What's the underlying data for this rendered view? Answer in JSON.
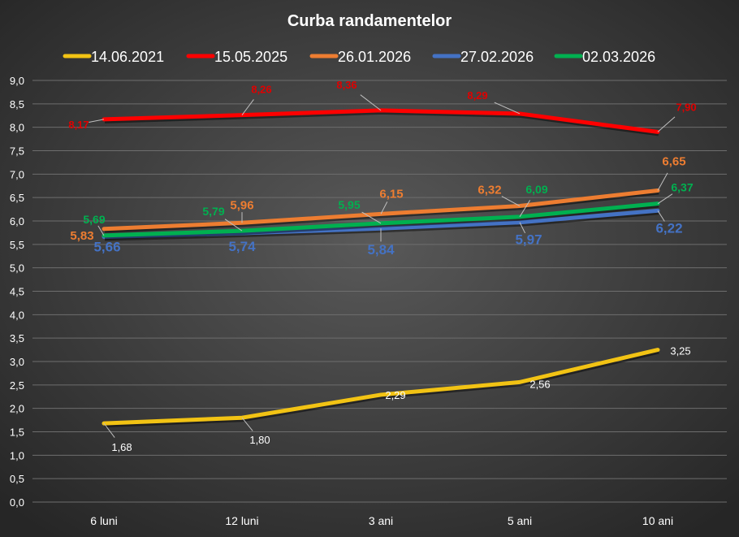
{
  "chart_data": {
    "type": "line",
    "title": "Curba randamentelor",
    "xlabel": "",
    "ylabel": "",
    "categories": [
      "6 luni",
      "12 luni",
      "3 ani",
      "5 ani",
      "10 ani"
    ],
    "ylim": [
      0,
      9
    ],
    "ytick_step": 0.5,
    "grid": true,
    "legend_placement": "top",
    "series": [
      {
        "name": "14.06.2021",
        "color": "#f2c314",
        "values": [
          1.68,
          1.8,
          2.29,
          2.56,
          3.25
        ],
        "labels": [
          "1,68",
          "1,80",
          "2,29",
          "2,56",
          "3,25"
        ],
        "label_color": "#ffffff"
      },
      {
        "name": "15.05.2025",
        "color": "#ff0000",
        "values": [
          8.17,
          8.26,
          8.36,
          8.29,
          7.9
        ],
        "labels": [
          "8,17",
          "8,26",
          "8,36",
          "8,29",
          "7,90"
        ],
        "label_color": "#e00000"
      },
      {
        "name": "26.01.2026",
        "color": "#ed7d31",
        "values": [
          5.83,
          5.96,
          6.15,
          6.32,
          6.65
        ],
        "labels": [
          "5,83",
          "5,96",
          "6,15",
          "6,32",
          "6,65"
        ],
        "label_color": "#ed7d31"
      },
      {
        "name": "27.02.2026",
        "color": "#4472c4",
        "values": [
          5.66,
          5.74,
          5.84,
          5.97,
          6.22
        ],
        "labels": [
          "5,66",
          "5,74",
          "5,84",
          "5,97",
          "6,22"
        ],
        "label_color": "#4472c4"
      },
      {
        "name": "02.03.2026",
        "color": "#00b050",
        "values": [
          5.69,
          5.79,
          5.95,
          6.09,
          6.37
        ],
        "labels": [
          "5,69",
          "5,79",
          "5,95",
          "6,09",
          "6,37"
        ],
        "label_color": "#00b050"
      }
    ]
  }
}
